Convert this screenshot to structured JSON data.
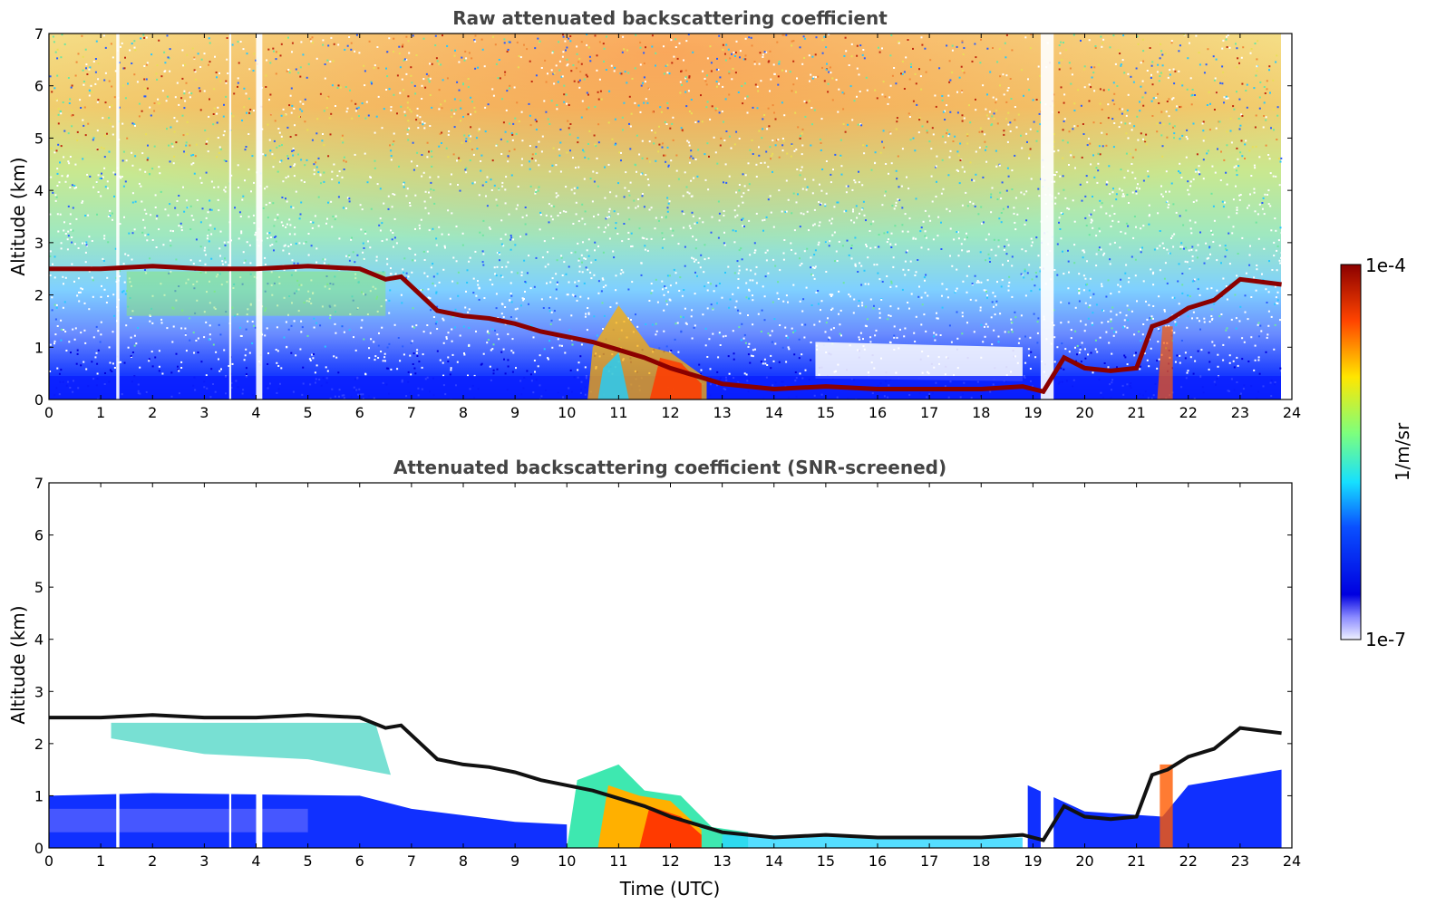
{
  "chart_data": [
    {
      "type": "heatmap",
      "title": "Raw attenuated backscattering coefficient",
      "xlabel": "",
      "ylabel": "Altitude (km)",
      "xlim": [
        0,
        24
      ],
      "ylim": [
        0,
        7
      ],
      "xticks": [
        "0",
        "1",
        "2",
        "3",
        "4",
        "5",
        "6",
        "7",
        "8",
        "9",
        "10",
        "11",
        "12",
        "13",
        "14",
        "15",
        "16",
        "17",
        "18",
        "19",
        "20",
        "21",
        "22",
        "23",
        "24"
      ],
      "yticks": [
        "0",
        "1",
        "2",
        "3",
        "4",
        "5",
        "6",
        "7"
      ],
      "screened": false,
      "cloud_layer": {
        "x": [
          0,
          1,
          2,
          3,
          4,
          5,
          6,
          6.5,
          6.8,
          7.5,
          8,
          8.5,
          9,
          9.5,
          10,
          10.5,
          11,
          11.5,
          12,
          12.5,
          13,
          13.5,
          14,
          15,
          16,
          17,
          18,
          18.8,
          19.2,
          19.6,
          20,
          20.5,
          21,
          21.3,
          21.6,
          22,
          22.5,
          23,
          23.8
        ],
        "y": [
          2.5,
          2.5,
          2.55,
          2.5,
          2.5,
          2.55,
          2.5,
          2.3,
          2.35,
          1.7,
          1.6,
          1.55,
          1.45,
          1.3,
          1.2,
          1.1,
          0.95,
          0.8,
          0.6,
          0.45,
          0.3,
          0.25,
          0.2,
          0.25,
          0.2,
          0.2,
          0.2,
          0.25,
          0.15,
          0.8,
          0.6,
          0.55,
          0.6,
          1.4,
          1.5,
          1.75,
          1.9,
          2.3,
          2.2
        ]
      }
    },
    {
      "type": "heatmap",
      "title": "Attenuated backscattering coefficient (SNR-screened)",
      "xlabel": "Time (UTC)",
      "ylabel": "Altitude (km)",
      "xlim": [
        0,
        24
      ],
      "ylim": [
        0,
        7
      ],
      "xticks": [
        "0",
        "1",
        "2",
        "3",
        "4",
        "5",
        "6",
        "7",
        "8",
        "9",
        "10",
        "11",
        "12",
        "13",
        "14",
        "15",
        "16",
        "17",
        "18",
        "19",
        "20",
        "21",
        "22",
        "23",
        "24"
      ],
      "yticks": [
        "0",
        "1",
        "2",
        "3",
        "4",
        "5",
        "6",
        "7"
      ],
      "screened": true
    }
  ],
  "colorbar": {
    "label": "1/m/sr",
    "max_label": "1e-4",
    "min_label": "1e-7",
    "colors": [
      "#eef0ff",
      "#0000cc",
      "#0a3cff",
      "#16e0ff",
      "#7dff7d",
      "#ffe600",
      "#ff4400",
      "#8b0000"
    ]
  }
}
